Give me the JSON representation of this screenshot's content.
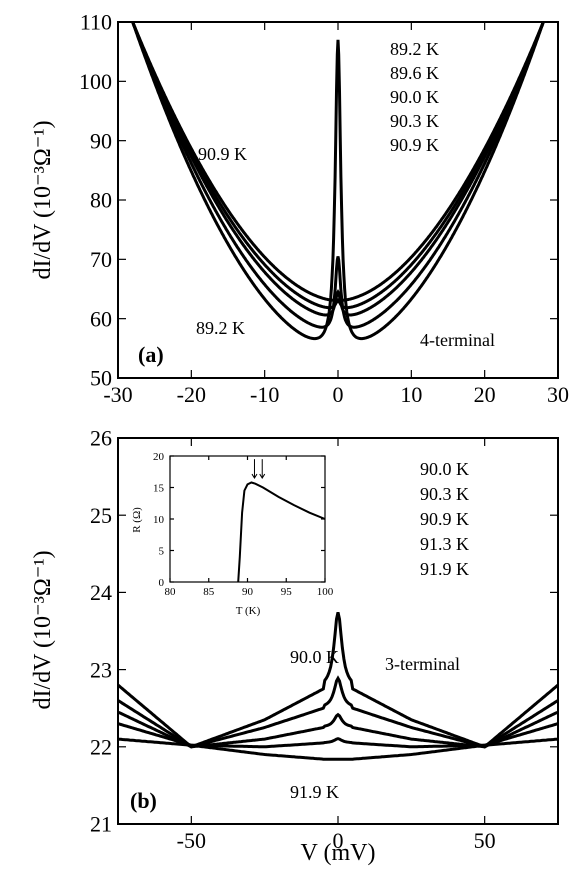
{
  "chart_data": [
    {
      "type": "line",
      "panel": "(a)",
      "xlabel": "",
      "ylabel": "dI/dV (10⁻³Ω⁻¹)",
      "xlim": [
        -30,
        30
      ],
      "ylim": [
        50,
        110
      ],
      "xticks": [
        -30,
        -20,
        -10,
        0,
        10,
        20,
        30
      ],
      "yticks": [
        50,
        60,
        70,
        80,
        90,
        100,
        110
      ],
      "legend": [
        "89.2 K",
        "89.6 K",
        "90.0 K",
        "90.3 K",
        "90.9 K"
      ],
      "annotations": [
        "90.9 K",
        "89.2 K",
        "4-terminal"
      ],
      "series": [
        {
          "name": "89.2 K",
          "min": 54.5,
          "peak": 107,
          "gap_mV": 2.5,
          "end": 110
        },
        {
          "name": "89.6 K",
          "min": 57.5,
          "peak": 70.5,
          "gap_mV": 2.0,
          "end": 110
        },
        {
          "name": "90.0 K",
          "min": 60.0,
          "peak": 64.5,
          "gap_mV": 1.5,
          "end": 110
        },
        {
          "name": "90.3 K",
          "min": 61.5,
          "peak": 63.0,
          "gap_mV": 1.0,
          "end": 110
        },
        {
          "name": "90.9 K",
          "min": 63.0,
          "peak": 63.2,
          "gap_mV": 0.5,
          "end": 110
        }
      ]
    },
    {
      "type": "line",
      "panel": "(b)",
      "xlabel": "V (mV)",
      "ylabel": "dI/dV (10⁻³Ω⁻¹)",
      "xlim": [
        -75,
        75
      ],
      "ylim": [
        21,
        26
      ],
      "xticks": [
        -50,
        0,
        50
      ],
      "yticks": [
        21,
        22,
        23,
        24,
        25,
        26
      ],
      "legend": [
        "90.0 K",
        "90.3 K",
        "90.9 K",
        "91.3 K",
        "91.9 K"
      ],
      "annotations": [
        "90.0 K",
        "91.9 K",
        "3-terminal"
      ],
      "series": [
        {
          "name": "90.0 K",
          "x": [
            -75,
            -50,
            -25,
            -5,
            0,
            5,
            25,
            50,
            75
          ],
          "y": [
            22.8,
            22.0,
            22.35,
            22.75,
            23.65,
            22.75,
            22.35,
            22.0,
            22.8
          ]
        },
        {
          "name": "90.3 K",
          "x": [
            -75,
            -50,
            -25,
            -5,
            0,
            5,
            25,
            50,
            75
          ],
          "y": [
            22.6,
            22.0,
            22.25,
            22.5,
            22.85,
            22.5,
            22.25,
            22.0,
            22.6
          ]
        },
        {
          "name": "90.9 K",
          "x": [
            -75,
            -50,
            -25,
            -5,
            0,
            5,
            25,
            50,
            75
          ],
          "y": [
            22.45,
            22.0,
            22.1,
            22.25,
            22.4,
            22.25,
            22.1,
            22.0,
            22.45
          ]
        },
        {
          "name": "91.3 K",
          "x": [
            -75,
            -50,
            -25,
            -5,
            0,
            5,
            25,
            50,
            75
          ],
          "y": [
            22.3,
            22.02,
            22.0,
            22.05,
            22.1,
            22.05,
            22.0,
            22.02,
            22.3
          ]
        },
        {
          "name": "91.9 K",
          "x": [
            -75,
            -50,
            -25,
            -5,
            0,
            5,
            25,
            50,
            75
          ],
          "y": [
            22.1,
            22.02,
            21.9,
            21.84,
            21.83,
            21.84,
            21.9,
            22.02,
            22.1
          ]
        }
      ],
      "inset": {
        "type": "line",
        "xlabel": "T (K)",
        "ylabel": "R (Ω)",
        "xlim": [
          80,
          100
        ],
        "ylim": [
          0,
          20
        ],
        "xticks": [
          80,
          85,
          90,
          95,
          100
        ],
        "yticks": [
          0,
          5,
          10,
          15,
          20
        ],
        "x": [
          88.8,
          89.0,
          89.3,
          89.6,
          90.0,
          90.5,
          91,
          92,
          94,
          96,
          98,
          100
        ],
        "y": [
          0,
          4,
          11,
          14.5,
          15.5,
          15.8,
          15.6,
          15.0,
          13.5,
          12.2,
          11.0,
          10.0
        ],
        "arrows_x": [
          90.9,
          91.9
        ]
      }
    }
  ]
}
